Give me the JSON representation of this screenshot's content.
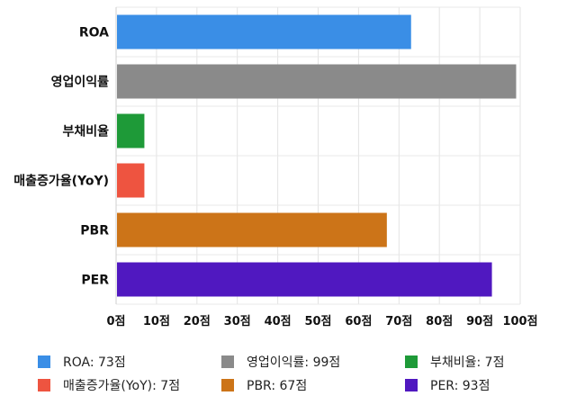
{
  "chart_data": {
    "type": "bar",
    "orientation": "horizontal",
    "categories": [
      "ROA",
      "영업이익률",
      "부채비율",
      "매출증가율(YoY)",
      "PBR",
      "PER"
    ],
    "values": [
      73,
      99,
      7,
      7,
      67,
      93
    ],
    "colors": [
      "#3a8ee6",
      "#8a8a8a",
      "#1e9a38",
      "#ee5440",
      "#cc7418",
      "#5018c0"
    ],
    "xlim": [
      0,
      100
    ],
    "x_ticks": [
      0,
      10,
      20,
      30,
      40,
      50,
      60,
      70,
      80,
      90,
      100
    ],
    "tick_suffix": "점",
    "grid": true,
    "legend": {
      "placement": "bottom",
      "items": [
        {
          "label": "ROA: 73점",
          "color": "#3a8ee6"
        },
        {
          "label": "영업이익률: 99점",
          "color": "#8a8a8a"
        },
        {
          "label": "부채비율: 7점",
          "color": "#1e9a38"
        },
        {
          "label": "매출증가율(YoY): 7점",
          "color": "#ee5440"
        },
        {
          "label": "PBR: 67점",
          "color": "#cc7418"
        },
        {
          "label": "PER: 93점",
          "color": "#5018c0"
        }
      ]
    }
  }
}
